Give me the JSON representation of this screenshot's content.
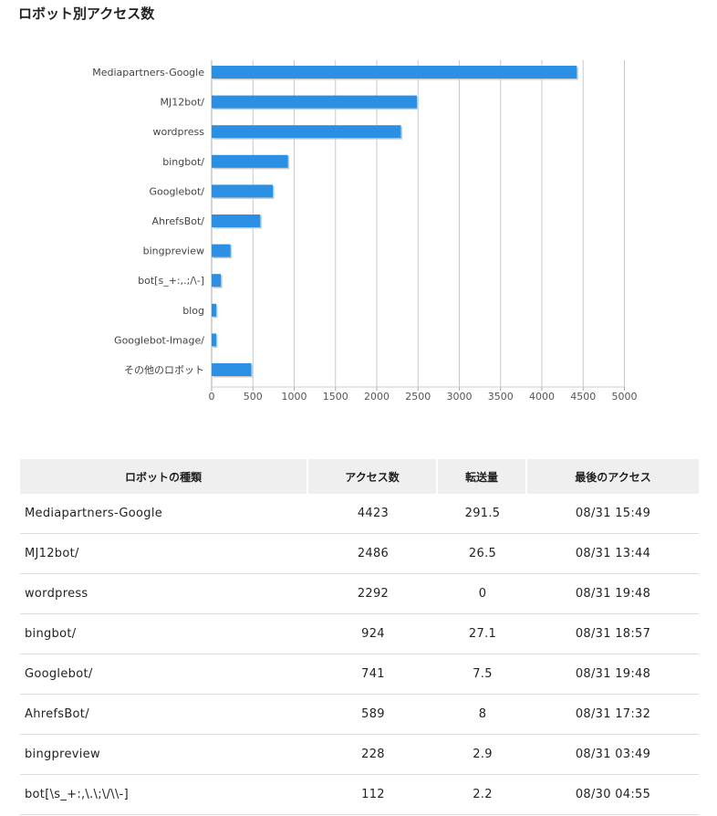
{
  "page_title": "ロボット別アクセス数",
  "chart_data": {
    "type": "bar",
    "orientation": "horizontal",
    "categories": [
      "Mediapartners-Google",
      "MJ12bot/",
      "wordpress",
      "bingbot/",
      "Googlebot/",
      "AhrefsBot/",
      "bingpreview",
      "bot[s_+:,.;/\\-]",
      "blog",
      "Googlebot-Image/",
      "その他のロボット"
    ],
    "values": [
      4423,
      2486,
      2292,
      924,
      741,
      589,
      228,
      112,
      55,
      55,
      480
    ],
    "xticks": [
      "0",
      "500",
      "1000",
      "1500",
      "2000",
      "2500",
      "3000",
      "3500",
      "4000",
      "4500",
      "5000"
    ],
    "xlim": [
      0,
      5000
    ],
    "grid": true,
    "bar_color": "#2b8fe3"
  },
  "table": {
    "headers": [
      "ロボットの種類",
      "アクセス数",
      "転送量",
      "最後のアクセス"
    ],
    "rows": [
      [
        "Mediapartners-Google",
        "4423",
        "291.5",
        "08/31 15:49"
      ],
      [
        "MJ12bot/",
        "2486",
        "26.5",
        "08/31 13:44"
      ],
      [
        "wordpress",
        "2292",
        "0",
        "08/31 19:48"
      ],
      [
        "bingbot/",
        "924",
        "27.1",
        "08/31 18:57"
      ],
      [
        "Googlebot/",
        "741",
        "7.5",
        "08/31 19:48"
      ],
      [
        "AhrefsBot/",
        "589",
        "8",
        "08/31 17:32"
      ],
      [
        "bingpreview",
        "228",
        "2.9",
        "08/31 03:49"
      ],
      [
        "bot[\\s_+:,\\.\\;\\/\\\\-]",
        "112",
        "2.2",
        "08/30 04:55"
      ]
    ]
  }
}
